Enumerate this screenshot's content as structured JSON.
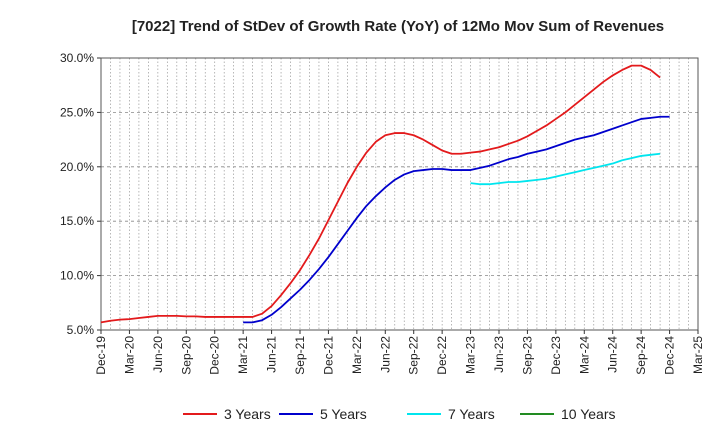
{
  "chart_data": {
    "type": "line",
    "title": "[7022]  Trend of StDev of Growth Rate (YoY) of 12Mo Mov Sum of Revenues",
    "xlabel": "",
    "ylabel": "",
    "ylim": [
      5.0,
      30.0
    ],
    "y_ticks": [
      "5.0%",
      "10.0%",
      "15.0%",
      "20.0%",
      "25.0%",
      "30.0%"
    ],
    "x_tick_labels": [
      "Dec-19",
      "Mar-20",
      "Jun-20",
      "Sep-20",
      "Dec-20",
      "Mar-21",
      "Jun-21",
      "Sep-21",
      "Dec-21",
      "Mar-22",
      "Jun-22",
      "Sep-22",
      "Dec-22",
      "Mar-23",
      "Jun-23",
      "Sep-23",
      "Dec-23",
      "Mar-24",
      "Jun-24",
      "Sep-24",
      "Dec-24",
      "Mar-25"
    ],
    "x_start_index": 0,
    "x_end_index": 63,
    "grid": true,
    "legend_position": "bottom",
    "series": [
      {
        "name": "3 Years",
        "color": "#e31a1c",
        "start_index": 0,
        "values": [
          5.7,
          5.85,
          5.95,
          6.0,
          6.1,
          6.2,
          6.3,
          6.3,
          6.3,
          6.25,
          6.25,
          6.2,
          6.2,
          6.2,
          6.2,
          6.2,
          6.2,
          6.5,
          7.2,
          8.2,
          9.3,
          10.5,
          11.9,
          13.4,
          15.1,
          16.8,
          18.5,
          20.0,
          21.3,
          22.3,
          22.9,
          23.1,
          23.1,
          22.9,
          22.5,
          22.0,
          21.5,
          21.2,
          21.2,
          21.3,
          21.4,
          21.6,
          21.8,
          22.1,
          22.4,
          22.8,
          23.3,
          23.8,
          24.4,
          25.0,
          25.7,
          26.4,
          27.1,
          27.8,
          28.4,
          28.9,
          29.3,
          29.3,
          28.9,
          28.2
        ]
      },
      {
        "name": "5 Years",
        "color": "#0000cc",
        "start_index": 15,
        "values": [
          5.7,
          5.7,
          5.9,
          6.4,
          7.1,
          7.9,
          8.7,
          9.6,
          10.6,
          11.7,
          12.9,
          14.1,
          15.3,
          16.4,
          17.3,
          18.1,
          18.8,
          19.3,
          19.6,
          19.7,
          19.8,
          19.8,
          19.7,
          19.7,
          19.7,
          19.9,
          20.1,
          20.4,
          20.7,
          20.9,
          21.2,
          21.4,
          21.6,
          21.9,
          22.2,
          22.5,
          22.7,
          22.9,
          23.2,
          23.5,
          23.8,
          24.1,
          24.4,
          24.5,
          24.6,
          24.6
        ]
      },
      {
        "name": "7 Years",
        "color": "#00e5ee",
        "start_index": 39,
        "values": [
          18.5,
          18.4,
          18.4,
          18.5,
          18.6,
          18.6,
          18.7,
          18.8,
          18.9,
          19.1,
          19.3,
          19.5,
          19.7,
          19.9,
          20.1,
          20.3,
          20.6,
          20.8,
          21.0,
          21.1,
          21.2
        ]
      },
      {
        "name": "10 Years",
        "color": "#228b22",
        "start_index": 0,
        "values": []
      }
    ]
  }
}
